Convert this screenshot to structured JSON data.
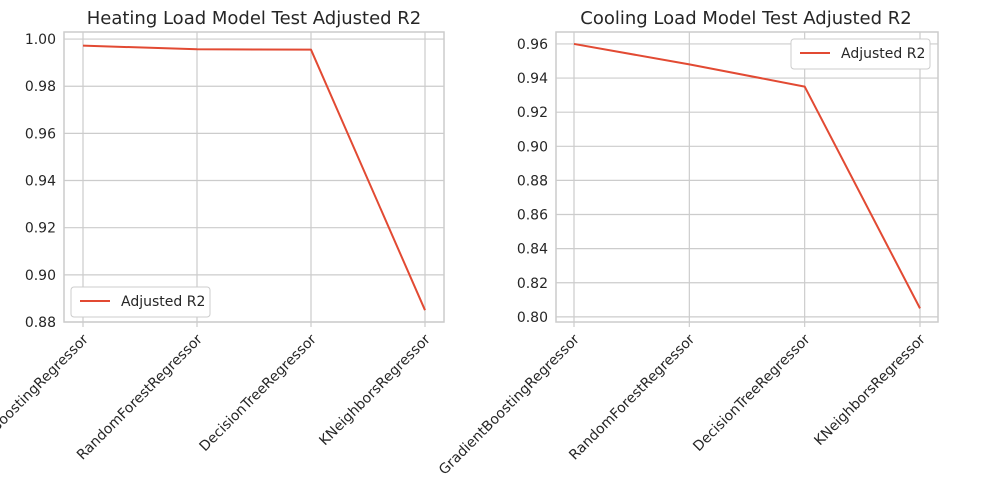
{
  "chart_data": [
    {
      "type": "line",
      "title": "Heating Load Model Test Adjusted R2",
      "xlabel": "",
      "ylabel": "",
      "categories": [
        "GradientBoostingRegressor",
        "RandomForestRegressor",
        "DecisionTreeRegressor",
        "KNeighborsRegressor"
      ],
      "series": [
        {
          "name": "Adjusted R2",
          "values": [
            0.9972,
            0.9957,
            0.9955,
            0.885
          ],
          "color": "#e24a33"
        }
      ],
      "ylim": [
        0.88,
        1.003
      ],
      "yticks": [
        0.88,
        0.9,
        0.92,
        0.94,
        0.96,
        0.98,
        1.0
      ],
      "ytick_labels": [
        "0.88",
        "0.90",
        "0.92",
        "0.94",
        "0.96",
        "0.98",
        "1.00"
      ],
      "grid": true,
      "legend_loc": "lower left"
    },
    {
      "type": "line",
      "title": "Cooling Load Model Test Adjusted R2",
      "xlabel": "",
      "ylabel": "",
      "categories": [
        "GradientBoostingRegressor",
        "RandomForestRegressor",
        "DecisionTreeRegressor",
        "KNeighborsRegressor"
      ],
      "series": [
        {
          "name": "Adjusted R2",
          "values": [
            0.96,
            0.948,
            0.935,
            0.805
          ],
          "color": "#e24a33"
        }
      ],
      "ylim": [
        0.797,
        0.967
      ],
      "yticks": [
        0.8,
        0.82,
        0.84,
        0.86,
        0.88,
        0.9,
        0.92,
        0.94,
        0.96
      ],
      "ytick_labels": [
        "0.80",
        "0.82",
        "0.84",
        "0.86",
        "0.88",
        "0.90",
        "0.92",
        "0.94",
        "0.96"
      ],
      "grid": true,
      "legend_loc": "upper right"
    }
  ]
}
